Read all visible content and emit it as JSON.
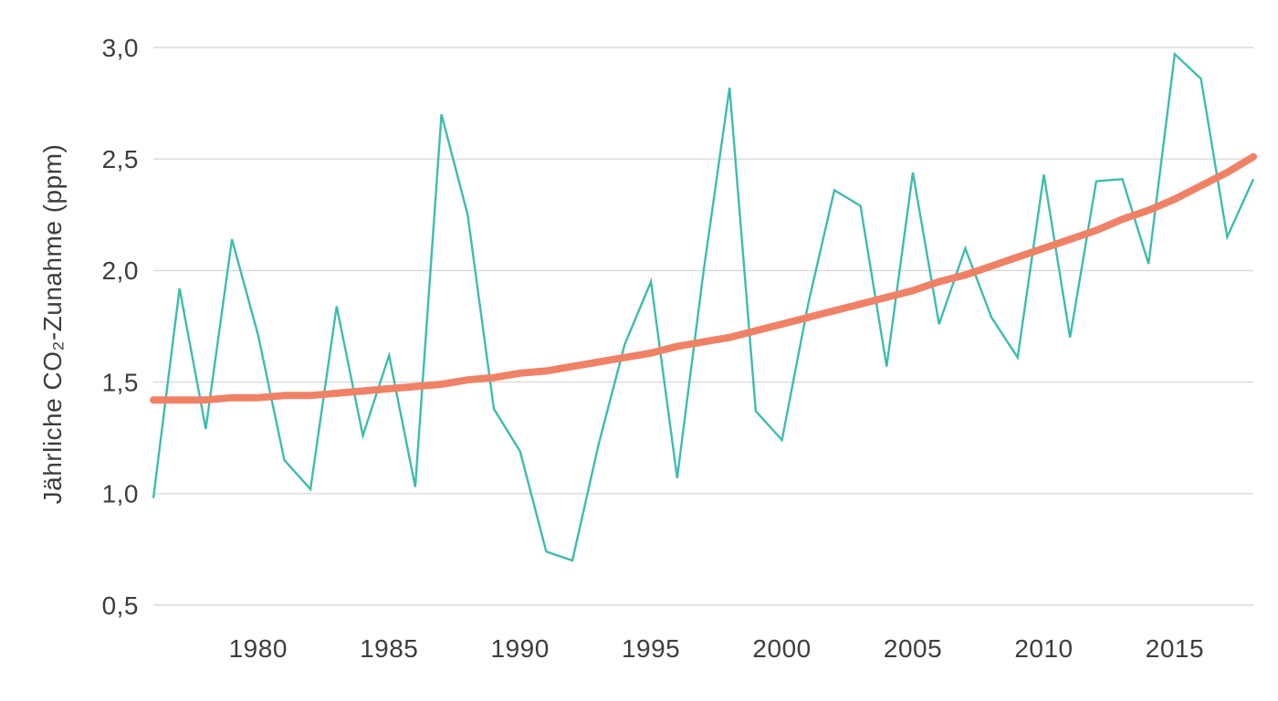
{
  "chart_data": {
    "type": "line",
    "title": "",
    "ylabel": "Jährliche CO₂-Zunahme (ppm)",
    "xlabel": "",
    "xlim": [
      1976,
      2018
    ],
    "ylim": [
      0.5,
      3.0
    ],
    "grid": "horizontal-only",
    "legend": "none",
    "x": [
      1976,
      1977,
      1978,
      1979,
      1980,
      1981,
      1982,
      1983,
      1984,
      1985,
      1986,
      1987,
      1988,
      1989,
      1990,
      1991,
      1992,
      1993,
      1994,
      1995,
      1996,
      1997,
      1998,
      1999,
      2000,
      2001,
      2002,
      2003,
      2004,
      2005,
      2006,
      2007,
      2008,
      2009,
      2010,
      2011,
      2012,
      2013,
      2014,
      2015,
      2016,
      2017,
      2018
    ],
    "series": [
      {
        "id": "annual",
        "color": "#3ebcad",
        "stroke_width": 2.4,
        "values": [
          0.98,
          1.92,
          1.29,
          2.14,
          1.71,
          1.15,
          1.02,
          1.84,
          1.26,
          1.62,
          1.03,
          2.7,
          2.25,
          1.38,
          1.19,
          0.74,
          0.7,
          1.22,
          1.67,
          1.95,
          1.07,
          1.99,
          2.82,
          1.37,
          1.24,
          1.85,
          2.36,
          2.29,
          1.57,
          2.44,
          1.76,
          2.1,
          1.79,
          1.61,
          2.43,
          1.7,
          2.4,
          2.41,
          2.03,
          2.97,
          2.86,
          2.15,
          2.41
        ]
      },
      {
        "id": "trend",
        "color": "#ef8266",
        "stroke_width": 8,
        "values": [
          1.42,
          1.42,
          1.42,
          1.43,
          1.43,
          1.44,
          1.44,
          1.45,
          1.46,
          1.47,
          1.48,
          1.49,
          1.51,
          1.52,
          1.54,
          1.55,
          1.57,
          1.59,
          1.61,
          1.63,
          1.66,
          1.68,
          1.7,
          1.73,
          1.76,
          1.79,
          1.82,
          1.85,
          1.88,
          1.91,
          1.95,
          1.98,
          2.02,
          2.06,
          2.1,
          2.14,
          2.18,
          2.23,
          2.27,
          2.32,
          2.38,
          2.44,
          2.51
        ]
      }
    ],
    "xticks": {
      "values": [
        1980,
        1985,
        1990,
        1995,
        2000,
        2005,
        2010,
        2015
      ],
      "labels": [
        "1980",
        "1985",
        "1990",
        "1995",
        "2000",
        "2005",
        "2010",
        "2015"
      ]
    },
    "yticks": {
      "values": [
        0.5,
        1.0,
        1.5,
        2.0,
        2.5,
        3.0
      ],
      "labels": [
        "0,5",
        "1,0",
        "1,5",
        "2,0",
        "2,5",
        "3,0"
      ]
    }
  },
  "styling": {
    "background": "#ffffff",
    "grid_color": "#d9d9d9",
    "text_color": "#3d3d3d",
    "annual_line_color": "#3ebcad",
    "trend_line_color": "#ef8266"
  }
}
